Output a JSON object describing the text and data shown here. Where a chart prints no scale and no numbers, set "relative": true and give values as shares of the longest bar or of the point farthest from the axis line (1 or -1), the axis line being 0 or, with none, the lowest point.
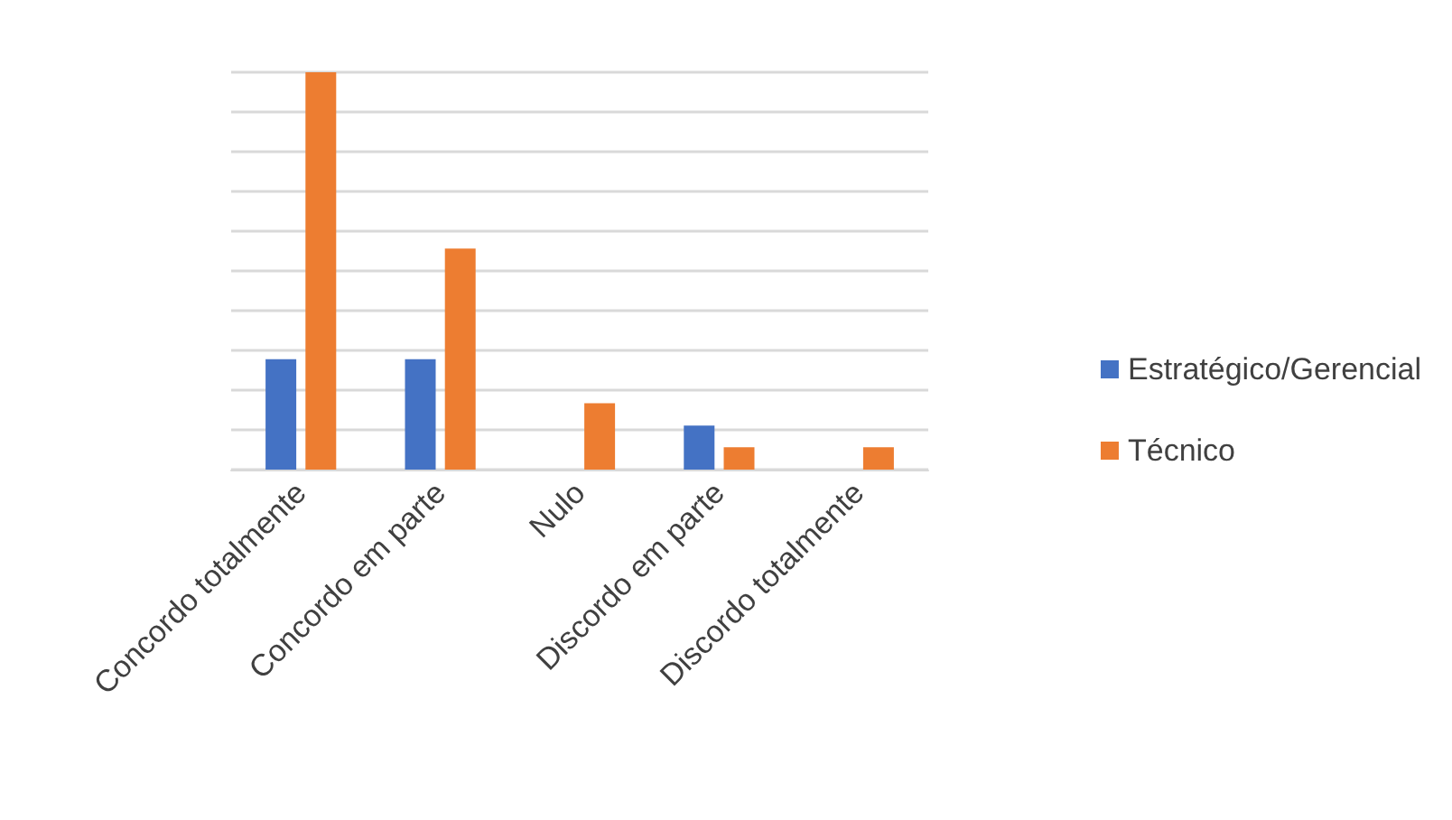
{
  "chart_data": {
    "type": "bar",
    "relative": true,
    "grid": "y",
    "legend": "right",
    "categories": [
      "Concordo totalmente",
      "Concordo em parte",
      "Nulo",
      "Discordo em parte",
      "Discordo totalmente"
    ],
    "series": [
      {
        "name": "Estratégico/Gerencial",
        "color": "#4472c4",
        "values": [
          0.278,
          0.278,
          0,
          0.111,
          0
        ]
      },
      {
        "name": "Técnico",
        "color": "#ed7d31",
        "values": [
          1,
          0.556,
          0.167,
          0.056,
          0.056
        ]
      }
    ]
  }
}
